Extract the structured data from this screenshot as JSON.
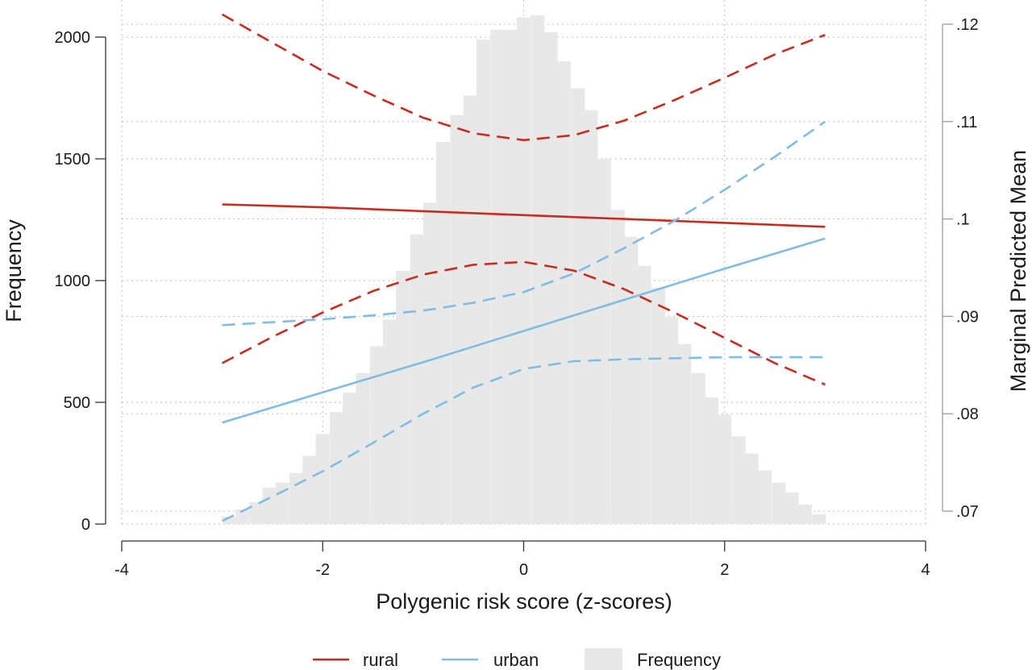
{
  "chart_data": {
    "type": "line",
    "xlabel": "Polygenic risk score (z-scores)",
    "ylabel_left": "Frequency",
    "ylabel_right": "Marginal Predicted Mean",
    "xlim": [
      -4,
      4
    ],
    "x_ticks": [
      -4,
      -2,
      0,
      2,
      4
    ],
    "x_tick_labels": [
      "-4",
      "-2",
      "0",
      "2",
      "4"
    ],
    "ylim_left": [
      0,
      2000
    ],
    "y_ticks_left": [
      0,
      500,
      1000,
      1500,
      2000
    ],
    "y_tick_labels_left": [
      "0",
      "500",
      "1000",
      "1500",
      "2000"
    ],
    "ylim_right": [
      0.07,
      0.12
    ],
    "y_ticks_right": [
      0.07,
      0.08,
      0.09,
      0.1,
      0.11,
      0.12
    ],
    "y_tick_labels_right": [
      ".07",
      ".08",
      ".09",
      ".1",
      ".11",
      ".12"
    ],
    "grid": true,
    "legend_position": "bottom",
    "colors": {
      "rural": "#cc2a1f",
      "urban": "#7fbde4",
      "frequency": "#e8e8e8"
    },
    "legend": [
      {
        "label": "rural",
        "kind": "line",
        "color": "#cc2a1f"
      },
      {
        "label": "urban",
        "kind": "line",
        "color": "#7fbde4"
      },
      {
        "label": "Frequency",
        "kind": "area",
        "color": "#e8e8e8"
      }
    ],
    "histogram": {
      "name": "Frequency",
      "axis": "left",
      "bin_width": 0.133,
      "bins": [
        {
          "x0": -3.0,
          "y": 30
        },
        {
          "x0": -2.87,
          "y": 60
        },
        {
          "x0": -2.73,
          "y": 90
        },
        {
          "x0": -2.6,
          "y": 150
        },
        {
          "x0": -2.47,
          "y": 170
        },
        {
          "x0": -2.33,
          "y": 210
        },
        {
          "x0": -2.2,
          "y": 280
        },
        {
          "x0": -2.07,
          "y": 370
        },
        {
          "x0": -1.93,
          "y": 460
        },
        {
          "x0": -1.8,
          "y": 540
        },
        {
          "x0": -1.67,
          "y": 620
        },
        {
          "x0": -1.53,
          "y": 730
        },
        {
          "x0": -1.4,
          "y": 840
        },
        {
          "x0": -1.27,
          "y": 1040
        },
        {
          "x0": -1.13,
          "y": 1190
        },
        {
          "x0": -1.0,
          "y": 1320
        },
        {
          "x0": -0.87,
          "y": 1570
        },
        {
          "x0": -0.73,
          "y": 1680
        },
        {
          "x0": -0.6,
          "y": 1760
        },
        {
          "x0": -0.47,
          "y": 1990
        },
        {
          "x0": -0.33,
          "y": 2030
        },
        {
          "x0": -0.2,
          "y": 2030
        },
        {
          "x0": -0.07,
          "y": 2080
        },
        {
          "x0": 0.07,
          "y": 2090
        },
        {
          "x0": 0.2,
          "y": 2020
        },
        {
          "x0": 0.33,
          "y": 1900
        },
        {
          "x0": 0.47,
          "y": 1790
        },
        {
          "x0": 0.6,
          "y": 1700
        },
        {
          "x0": 0.73,
          "y": 1500
        },
        {
          "x0": 0.87,
          "y": 1290
        },
        {
          "x0": 1.0,
          "y": 1180
        },
        {
          "x0": 1.13,
          "y": 1060
        },
        {
          "x0": 1.27,
          "y": 970
        },
        {
          "x0": 1.4,
          "y": 850
        },
        {
          "x0": 1.53,
          "y": 740
        },
        {
          "x0": 1.67,
          "y": 620
        },
        {
          "x0": 1.8,
          "y": 520
        },
        {
          "x0": 1.93,
          "y": 450
        },
        {
          "x0": 2.07,
          "y": 360
        },
        {
          "x0": 2.2,
          "y": 290
        },
        {
          "x0": 2.33,
          "y": 220
        },
        {
          "x0": 2.47,
          "y": 170
        },
        {
          "x0": 2.6,
          "y": 130
        },
        {
          "x0": 2.73,
          "y": 80
        },
        {
          "x0": 2.87,
          "y": 40
        }
      ]
    },
    "series": [
      {
        "name": "rural",
        "axis": "right",
        "color": "#cc2a1f",
        "style": "solid",
        "x": [
          -3,
          -2,
          -1,
          0,
          1,
          2,
          3
        ],
        "y": [
          0.1015,
          0.1012,
          0.1008,
          0.1004,
          0.1,
          0.0996,
          0.0992
        ]
      },
      {
        "name": "rural-ci-upper",
        "axis": "right",
        "color": "#cc2a1f",
        "style": "dashed",
        "x": [
          -3,
          -2.5,
          -2,
          -1.5,
          -1,
          -0.5,
          0,
          0.5,
          1,
          1.5,
          2,
          2.5,
          3
        ],
        "y": [
          0.121,
          0.1181,
          0.1152,
          0.1127,
          0.1104,
          0.1088,
          0.1081,
          0.1086,
          0.1101,
          0.1122,
          0.1145,
          0.1169,
          0.1189
        ]
      },
      {
        "name": "rural-ci-lower",
        "axis": "right",
        "color": "#cc2a1f",
        "style": "dashed",
        "x": [
          -3,
          -2.5,
          -2,
          -1.5,
          -1,
          -0.5,
          0,
          0.5,
          1,
          1.5,
          2,
          2.5,
          3
        ],
        "y": [
          0.0852,
          0.0879,
          0.0904,
          0.0926,
          0.0943,
          0.0953,
          0.0956,
          0.0947,
          0.0928,
          0.0904,
          0.0878,
          0.0852,
          0.083
        ]
      },
      {
        "name": "urban",
        "axis": "right",
        "color": "#7fbde4",
        "style": "solid",
        "x": [
          -3,
          -2,
          -1,
          0,
          1,
          2,
          3
        ],
        "y": [
          0.0791,
          0.0822,
          0.0853,
          0.0885,
          0.0917,
          0.0949,
          0.098
        ]
      },
      {
        "name": "urban-ci-upper",
        "axis": "right",
        "color": "#7fbde4",
        "style": "dashed",
        "x": [
          -3,
          -2.5,
          -2,
          -1.5,
          -1,
          -0.5,
          0,
          0.5,
          1,
          1.5,
          2,
          2.5,
          3
        ],
        "y": [
          0.0891,
          0.0894,
          0.0897,
          0.0901,
          0.0906,
          0.0914,
          0.0925,
          0.0944,
          0.097,
          0.0998,
          0.103,
          0.1064,
          0.11
        ]
      },
      {
        "name": "urban-ci-lower",
        "axis": "right",
        "color": "#7fbde4",
        "style": "dashed",
        "x": [
          -3,
          -2.5,
          -2,
          -1.5,
          -1,
          -0.5,
          0,
          0.5,
          1,
          1.5,
          2,
          2.5,
          3
        ],
        "y": [
          0.069,
          0.0715,
          0.0741,
          0.077,
          0.08,
          0.0827,
          0.0846,
          0.0854,
          0.0856,
          0.0857,
          0.0858,
          0.0858,
          0.0858
        ]
      }
    ]
  }
}
